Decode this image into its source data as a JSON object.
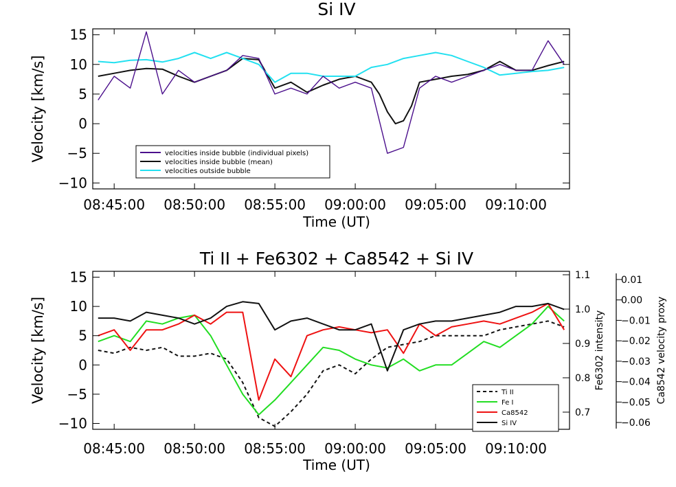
{
  "chart_data": [
    {
      "type": "line",
      "title": "Si IV",
      "xlabel": "Time (UT)",
      "ylabel": "Velocity [km/s]",
      "xlim": [
        "08:43:40",
        "09:13:20"
      ],
      "ylim": [
        -11,
        16
      ],
      "x_ticks": [
        "08:45:00",
        "08:50:00",
        "08:55:00",
        "09:00:00",
        "09:05:00",
        "09:10:00"
      ],
      "y_ticks": [
        "-10",
        "-5",
        "0",
        "5",
        "10",
        "15"
      ],
      "legend": {
        "position": "bottom-left",
        "entries": [
          {
            "label": "velocities inside bubble (individual pixels)",
            "color": "#4b0f8c"
          },
          {
            "label": "velocities inside bubble (mean)",
            "color": "#111111"
          },
          {
            "label": "velocities outside bubble",
            "color": "#22e0f0"
          }
        ]
      },
      "series": [
        {
          "color": "#111111",
          "x": [
            "08:44:00",
            "08:45:00",
            "08:46:00",
            "08:47:00",
            "08:48:00",
            "08:49:00",
            "08:50:00",
            "08:51:00",
            "08:52:00",
            "08:53:00",
            "08:54:00",
            "08:55:00",
            "08:56:00",
            "08:57:00",
            "08:58:00",
            "08:59:00",
            "09:00:00",
            "09:01:00",
            "09:01:30",
            "09:02:00",
            "09:02:30",
            "09:03:00",
            "09:03:30",
            "09:04:00",
            "09:05:00",
            "09:06:00",
            "09:07:00",
            "09:08:00",
            "09:09:00",
            "09:10:00",
            "09:11:00",
            "09:12:00",
            "09:13:00"
          ],
          "values": [
            8,
            8.5,
            9,
            9.3,
            9.2,
            8,
            7,
            8,
            9,
            11,
            10.8,
            6,
            7,
            5.3,
            6.5,
            7.5,
            8,
            7,
            5,
            2,
            0,
            0.5,
            3,
            7,
            7.5,
            8,
            8.3,
            9,
            10.5,
            9,
            9,
            9.8,
            10.5
          ]
        },
        {
          "color": "#22e0f0",
          "x": [
            "08:44:00",
            "08:45:00",
            "08:46:00",
            "08:47:00",
            "08:48:00",
            "08:49:00",
            "08:50:00",
            "08:51:00",
            "08:52:00",
            "08:53:00",
            "08:54:00",
            "08:55:00",
            "08:56:00",
            "08:57:00",
            "08:58:00",
            "08:59:00",
            "09:00:00",
            "09:01:00",
            "09:02:00",
            "09:03:00",
            "09:04:00",
            "09:05:00",
            "09:06:00",
            "09:07:00",
            "09:08:00",
            "09:09:00",
            "09:10:00",
            "09:11:00",
            "09:12:00",
            "09:13:00"
          ],
          "values": [
            10.5,
            10.3,
            10.7,
            10.8,
            10.4,
            11,
            12,
            11,
            12,
            11,
            10,
            7,
            8.5,
            8.5,
            8,
            8,
            8,
            9.5,
            10,
            11,
            11.5,
            12,
            11.5,
            10.5,
            9.5,
            8.2,
            8.5,
            8.8,
            9,
            9.5
          ]
        },
        {
          "color": "#4b0f8c",
          "x": [
            "08:44:00",
            "08:45:00",
            "08:46:00",
            "08:47:00",
            "08:48:00",
            "08:49:00",
            "08:50:00",
            "08:51:00",
            "08:52:00",
            "08:53:00",
            "08:54:00",
            "08:55:00",
            "08:56:00",
            "08:57:00",
            "08:58:00",
            "08:59:00",
            "09:00:00",
            "09:01:00",
            "09:02:00",
            "09:03:00",
            "09:04:00",
            "09:05:00",
            "09:06:00",
            "09:07:00",
            "09:08:00",
            "09:09:00",
            "09:10:00",
            "09:11:00",
            "09:12:00",
            "09:13:00"
          ],
          "values": [
            4,
            8,
            6,
            15.5,
            5,
            9,
            7,
            8,
            9,
            11.5,
            11,
            5,
            6,
            5,
            8,
            6,
            7,
            6,
            -5,
            -4,
            6,
            8,
            7,
            8,
            9,
            10,
            9,
            9,
            14,
            10
          ]
        }
      ]
    },
    {
      "type": "line",
      "title": "Ti II + Fe6302 + Ca8542 + Si IV",
      "xlabel": "Time (UT)",
      "ylabel": "Velocity [km/s]",
      "ylabel_right": "Fe6302 intensity",
      "ylabel_right2": "Ca8542 velocity proxy",
      "xlim": [
        "08:43:40",
        "09:13:20"
      ],
      "ylim": [
        -11,
        16
      ],
      "x_ticks": [
        "08:45:00",
        "08:50:00",
        "08:55:00",
        "09:00:00",
        "09:05:00",
        "09:10:00"
      ],
      "y_ticks": [
        "-10",
        "-5",
        "0",
        "5",
        "10",
        "15"
      ],
      "y_ticks_right": [
        "0.7",
        "0.8",
        "0.9",
        "1.0",
        "1.1"
      ],
      "y_ticks_right2": [
        "0.01",
        "0.00",
        "−0.01",
        "−0.02",
        "−0.03",
        "−0.04",
        "−0.05",
        "−0.06"
      ],
      "legend": {
        "position": "bottom-right",
        "entries": [
          {
            "label": "Ti II",
            "color": "#111111",
            "dash": true
          },
          {
            "label": "Fe I",
            "color": "#22dd22"
          },
          {
            "label": "Ca8542",
            "color": "#ee1111"
          },
          {
            "label": "Si IV",
            "color": "#111111"
          }
        ]
      },
      "series": [
        {
          "color": "#111111",
          "dash": true,
          "x": [
            "08:44:00",
            "08:45:00",
            "08:46:00",
            "08:47:00",
            "08:48:00",
            "08:49:00",
            "08:50:00",
            "08:51:00",
            "08:52:00",
            "08:53:00",
            "08:54:00",
            "08:55:00",
            "08:56:00",
            "08:57:00",
            "08:58:00",
            "08:59:00",
            "09:00:00",
            "09:01:00",
            "09:02:00",
            "09:03:00",
            "09:04:00",
            "09:05:00",
            "09:06:00",
            "09:07:00",
            "09:08:00",
            "09:09:00",
            "09:10:00",
            "09:11:00",
            "09:12:00",
            "09:13:00"
          ],
          "values": [
            2.5,
            2,
            3,
            2.5,
            3,
            1.5,
            1.5,
            2,
            1,
            -3,
            -9,
            -10.5,
            -8,
            -5,
            -1,
            0,
            -1.5,
            1,
            3,
            3.5,
            4,
            5,
            5,
            5,
            5,
            6,
            6.5,
            7,
            7.5,
            6.5
          ]
        },
        {
          "color": "#22dd22",
          "x": [
            "08:44:00",
            "08:45:00",
            "08:46:00",
            "08:47:00",
            "08:48:00",
            "08:49:00",
            "08:50:00",
            "08:51:00",
            "08:52:00",
            "08:53:00",
            "08:54:00",
            "08:55:00",
            "08:56:00",
            "08:57:00",
            "08:58:00",
            "08:59:00",
            "09:00:00",
            "09:01:00",
            "09:02:00",
            "09:03:00",
            "09:04:00",
            "09:05:00",
            "09:06:00",
            "09:07:00",
            "09:08:00",
            "09:09:00",
            "09:10:00",
            "09:11:00",
            "09:12:00",
            "09:13:00"
          ],
          "values": [
            4,
            5,
            4,
            7.5,
            7,
            8,
            8.5,
            5,
            0,
            -5,
            -8.5,
            -6,
            -3,
            0,
            3,
            2.5,
            1,
            0,
            -0.5,
            1,
            -1,
            0,
            0,
            2,
            4,
            3,
            5,
            7,
            10,
            7.5
          ]
        },
        {
          "color": "#ee1111",
          "x": [
            "08:44:00",
            "08:45:00",
            "08:46:00",
            "08:47:00",
            "08:48:00",
            "08:49:00",
            "08:50:00",
            "08:51:00",
            "08:52:00",
            "08:53:00",
            "08:54:00",
            "08:55:00",
            "08:56:00",
            "08:57:00",
            "08:58:00",
            "08:59:00",
            "09:00:00",
            "09:01:00",
            "09:02:00",
            "09:03:00",
            "09:04:00",
            "09:05:00",
            "09:06:00",
            "09:07:00",
            "09:08:00",
            "09:09:00",
            "09:10:00",
            "09:11:00",
            "09:12:00",
            "09:13:00"
          ],
          "values": [
            5,
            6,
            2.5,
            6,
            6,
            7,
            8.5,
            7,
            9,
            9,
            -6,
            1,
            -2,
            5,
            6,
            6.5,
            6,
            5.5,
            6,
            2,
            7,
            5,
            6.5,
            7,
            7.5,
            7,
            8,
            9,
            10.5,
            6
          ]
        },
        {
          "color": "#111111",
          "x": [
            "08:44:00",
            "08:45:00",
            "08:46:00",
            "08:47:00",
            "08:48:00",
            "08:49:00",
            "08:50:00",
            "08:51:00",
            "08:52:00",
            "08:53:00",
            "08:54:00",
            "08:55:00",
            "08:56:00",
            "08:57:00",
            "08:58:00",
            "08:59:00",
            "09:00:00",
            "09:01:00",
            "09:02:00",
            "09:03:00",
            "09:04:00",
            "09:05:00",
            "09:06:00",
            "09:07:00",
            "09:08:00",
            "09:09:00",
            "09:10:00",
            "09:11:00",
            "09:12:00",
            "09:13:00"
          ],
          "values": [
            8,
            8,
            7.5,
            9,
            8.5,
            8,
            7,
            8,
            10,
            10.8,
            10.5,
            6,
            7.5,
            8,
            7,
            6,
            6,
            7,
            -1,
            6,
            7,
            7.5,
            7.5,
            8,
            8.5,
            9,
            10,
            10,
            10.5,
            9.5
          ]
        }
      ]
    }
  ]
}
